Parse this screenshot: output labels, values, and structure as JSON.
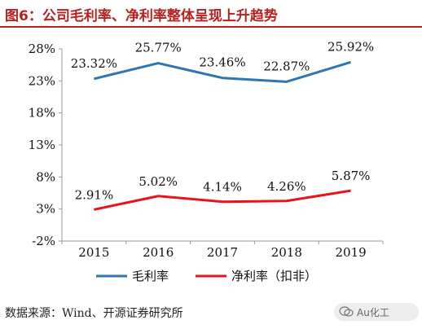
{
  "title": "图6：公司毛利率、净利率整体呈现上升趋势",
  "source": "数据来源：Wind、开源证券研究所",
  "watermark": "Au化工",
  "chart_data": {
    "type": "line",
    "categories": [
      "2015",
      "2016",
      "2017",
      "2018",
      "2019"
    ],
    "series": [
      {
        "name": "毛利率",
        "values": [
          23.32,
          25.77,
          23.46,
          22.87,
          25.92
        ],
        "labels": [
          "23.32%",
          "25.77%",
          "23.46%",
          "22.87%",
          "25.92%"
        ],
        "color": "#2e75b6"
      },
      {
        "name": "净利率（扣非）",
        "values": [
          2.91,
          5.02,
          4.14,
          4.26,
          5.87
        ],
        "labels": [
          "2.91%",
          "5.02%",
          "4.14%",
          "4.26%",
          "5.87%"
        ],
        "color": "#e8141a"
      }
    ],
    "y_ticks": [
      "28%",
      "23%",
      "18%",
      "13%",
      "8%",
      "3%",
      "-2%"
    ],
    "ylim": [
      -2,
      28
    ],
    "grid": false,
    "legend": "bottom"
  }
}
